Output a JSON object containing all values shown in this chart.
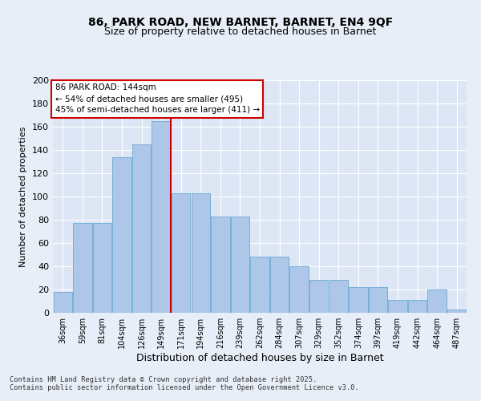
{
  "title1": "86, PARK ROAD, NEW BARNET, BARNET, EN4 9QF",
  "title2": "Size of property relative to detached houses in Barnet",
  "xlabel": "Distribution of detached houses by size in Barnet",
  "ylabel": "Number of detached properties",
  "categories": [
    "36sqm",
    "59sqm",
    "81sqm",
    "104sqm",
    "126sqm",
    "149sqm",
    "171sqm",
    "194sqm",
    "216sqm",
    "239sqm",
    "262sqm",
    "284sqm",
    "307sqm",
    "329sqm",
    "352sqm",
    "374sqm",
    "397sqm",
    "419sqm",
    "442sqm",
    "464sqm",
    "487sqm"
  ],
  "values": [
    18,
    77,
    77,
    134,
    145,
    165,
    103,
    103,
    83,
    83,
    48,
    48,
    40,
    28,
    28,
    22,
    22,
    11,
    11,
    20,
    3
  ],
  "bar_color": "#aec6e8",
  "bar_edge_color": "#6aaad4",
  "marker_idx": 5,
  "marker_line_color": "#cc0000",
  "annotation_text": "86 PARK ROAD: 144sqm\n← 54% of detached houses are smaller (495)\n45% of semi-detached houses are larger (411) →",
  "annotation_box_color": "#ffffff",
  "annotation_box_edge": "#cc0000",
  "bg_color": "#e8eef7",
  "plot_bg_color": "#dce6f5",
  "grid_color": "#ffffff",
  "footer1": "Contains HM Land Registry data © Crown copyright and database right 2025.",
  "footer2": "Contains public sector information licensed under the Open Government Licence v3.0.",
  "ylim": [
    0,
    200
  ],
  "yticks": [
    0,
    20,
    40,
    60,
    80,
    100,
    120,
    140,
    160,
    180,
    200
  ],
  "title1_fontsize": 10,
  "title2_fontsize": 9,
  "ylabel_fontsize": 8,
  "xlabel_fontsize": 9
}
